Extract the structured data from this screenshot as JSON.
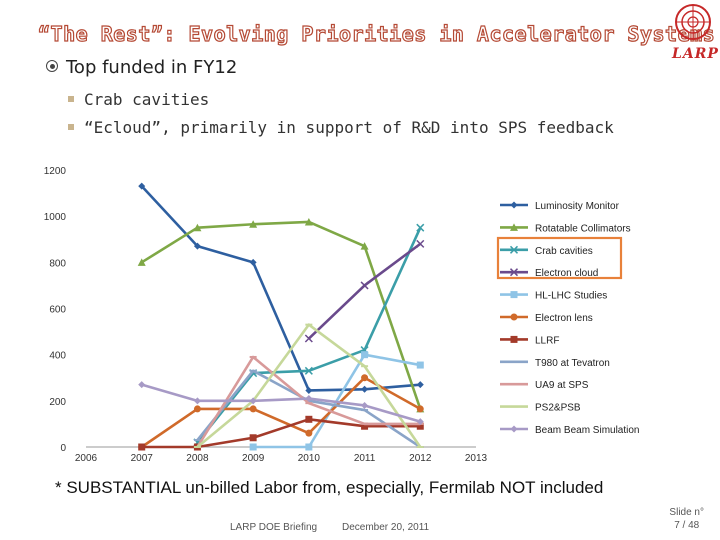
{
  "slide": {
    "title": "“The Rest”: Evolving Priorities in Accelerator Systems",
    "logo_text": "LARP",
    "bullet": "Top funded in FY12",
    "sub_bullets": [
      "Crab cavities",
      "“Ecloud”, primarily in support of R&D into SPS feedback"
    ],
    "footnote": "* SUBSTANTIAL un-billed Labor from, especially, Fermilab NOT included",
    "footer_left": "LARP DOE Briefing",
    "footer_center": "December 20, 2011",
    "slide_label": "Slide n°",
    "slide_number": "7 / 48"
  },
  "colors": {
    "title_outline": "#b54a35",
    "highlight_box": "#e8813a"
  },
  "chart_data": {
    "type": "line",
    "x": [
      2006,
      2007,
      2008,
      2009,
      2010,
      2011,
      2012,
      2013
    ],
    "x_tick_labels": [
      "2006",
      "2007",
      "2008",
      "2009",
      "2010",
      "2011",
      "2012",
      "2013"
    ],
    "y_tick_labels": [
      "0",
      "200",
      "400",
      "600",
      "800",
      "1000",
      "1200"
    ],
    "ylim": [
      0,
      1200
    ],
    "xlim": [
      2006,
      2013
    ],
    "grid": false,
    "legend_position": "right",
    "highlighted_legend": [
      "Crab cavities",
      "Electron cloud"
    ],
    "series": [
      {
        "name": "Luminosity Monitor",
        "color": "#2e5fa0",
        "marker": "diamond",
        "x": [
          2007,
          2008,
          2009,
          2010,
          2011,
          2012
        ],
        "values": [
          1130,
          870,
          800,
          245,
          250,
          270
        ]
      },
      {
        "name": "Rotatable Collimators",
        "color": "#7fa846",
        "marker": "triangle",
        "x": [
          2007,
          2008,
          2009,
          2010,
          2011,
          2012
        ],
        "values": [
          800,
          950,
          965,
          975,
          870,
          165
        ]
      },
      {
        "name": "Crab cavities",
        "color": "#3b9ea8",
        "marker": "x",
        "x": [
          2008,
          2009,
          2010,
          2011,
          2012
        ],
        "values": [
          20,
          320,
          330,
          420,
          950
        ]
      },
      {
        "name": "Electron cloud",
        "color": "#6a4a8c",
        "marker": "x",
        "x": [
          2010,
          2011,
          2012
        ],
        "values": [
          470,
          700,
          880
        ]
      },
      {
        "name": "HL-LHC Studies",
        "color": "#8fc4e6",
        "marker": "square",
        "x": [
          2009,
          2010,
          2011,
          2012
        ],
        "values": [
          0,
          0,
          400,
          355
        ]
      },
      {
        "name": "Electron lens",
        "color": "#d06a2a",
        "marker": "circle",
        "x": [
          2007,
          2008,
          2009,
          2010,
          2011,
          2012
        ],
        "values": [
          0,
          165,
          165,
          60,
          300,
          165
        ]
      },
      {
        "name": "LLRF",
        "color": "#a33a2a",
        "marker": "square",
        "x": [
          2007,
          2008,
          2009,
          2010,
          2011,
          2012
        ],
        "values": [
          0,
          0,
          40,
          120,
          90,
          90
        ]
      },
      {
        "name": "T980 at Tevatron",
        "color": "#8aa4c8",
        "marker": "dash",
        "x": [
          2008,
          2009,
          2010,
          2011,
          2012
        ],
        "values": [
          30,
          330,
          200,
          160,
          0
        ]
      },
      {
        "name": "UA9 at SPS",
        "color": "#d89a9a",
        "marker": "dash",
        "x": [
          2008,
          2009,
          2010,
          2011,
          2012
        ],
        "values": [
          0,
          390,
          190,
          100,
          100
        ]
      },
      {
        "name": "PS2&PSB",
        "color": "#c6d89a",
        "marker": "dash",
        "x": [
          2008,
          2009,
          2010,
          2011,
          2012
        ],
        "values": [
          0,
          200,
          530,
          350,
          0
        ]
      },
      {
        "name": "Beam Beam Simulation",
        "color": "#a79ac6",
        "marker": "diamond",
        "x": [
          2007,
          2008,
          2009,
          2010,
          2011,
          2012
        ],
        "values": [
          270,
          200,
          200,
          210,
          180,
          110
        ]
      }
    ]
  }
}
